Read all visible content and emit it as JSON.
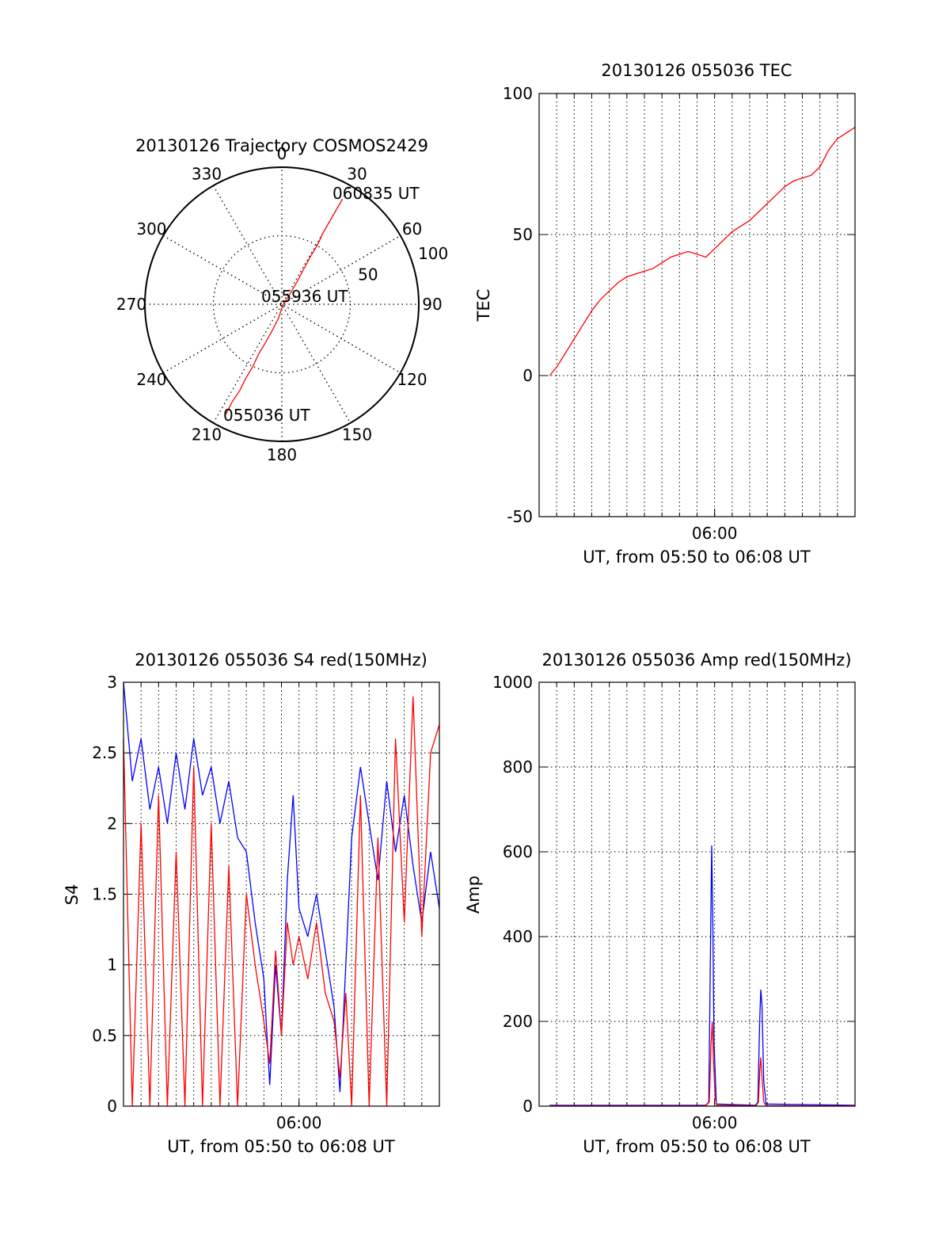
{
  "colors": {
    "red": "#ff0000",
    "blue": "#0000ff",
    "axes": "#000000",
    "grid": "#000000"
  },
  "chart_data": [
    {
      "type": "polar",
      "title": "20130126 Trajectory COSMOS2429",
      "angle_labels": [
        "0",
        "30",
        "60",
        "90",
        "120",
        "150",
        "180",
        "210",
        "240",
        "270",
        "300",
        "330"
      ],
      "radius_labels": [
        "50",
        "100"
      ],
      "rlim": [
        0,
        100
      ],
      "grid": true,
      "annotations": [
        {
          "text": "060835 UT"
        },
        {
          "text": "055936 UT"
        },
        {
          "text": "055036 UT"
        }
      ],
      "series": [
        {
          "color": "red",
          "points_az_zen": [
            [
              207,
              90
            ],
            [
              207,
              80
            ],
            [
              206,
              70
            ],
            [
              206,
              60
            ],
            [
              205,
              50
            ],
            [
              205,
              40
            ],
            [
              203,
              30
            ],
            [
              200,
              20
            ],
            [
              193,
              10
            ],
            [
              150,
              1
            ],
            [
              40,
              8
            ],
            [
              34,
              20
            ],
            [
              32,
              30
            ],
            [
              31,
              40
            ],
            [
              31,
              50
            ],
            [
              30,
              60
            ],
            [
              30,
              70
            ],
            [
              30,
              80
            ],
            [
              30,
              88
            ]
          ]
        }
      ]
    },
    {
      "type": "line",
      "title": "20130126 055036 TEC",
      "xlabel": "UT, from 05:50 to 06:08 UT",
      "ylabel": "TEC",
      "xlim": [
        "05:50:00",
        "06:08:00"
      ],
      "ylim": [
        -50,
        100
      ],
      "yticks": [
        "-50",
        "0",
        "50",
        "100"
      ],
      "xticks": [
        "06:00"
      ],
      "grid": true,
      "series": [
        {
          "color": "red",
          "points": [
            [
              "05:50:36",
              0
            ],
            [
              "05:51:00",
              3
            ],
            [
              "05:51:30",
              8
            ],
            [
              "05:52:00",
              13
            ],
            [
              "05:52:30",
              18
            ],
            [
              "05:53:00",
              23
            ],
            [
              "05:53:30",
              27
            ],
            [
              "05:54:00",
              30
            ],
            [
              "05:54:30",
              33
            ],
            [
              "05:55:00",
              35
            ],
            [
              "05:55:30",
              36
            ],
            [
              "05:56:00",
              37
            ],
            [
              "05:56:30",
              38
            ],
            [
              "05:57:00",
              40
            ],
            [
              "05:57:30",
              42
            ],
            [
              "05:58:00",
              43
            ],
            [
              "05:58:30",
              44
            ],
            [
              "05:59:00",
              43
            ],
            [
              "05:59:30",
              42
            ],
            [
              "06:00:00",
              45
            ],
            [
              "06:00:30",
              48
            ],
            [
              "06:01:00",
              51
            ],
            [
              "06:01:30",
              53
            ],
            [
              "06:02:00",
              55
            ],
            [
              "06:02:30",
              58
            ],
            [
              "06:03:00",
              61
            ],
            [
              "06:03:30",
              64
            ],
            [
              "06:04:00",
              67
            ],
            [
              "06:04:30",
              69
            ],
            [
              "06:05:00",
              70
            ],
            [
              "06:05:30",
              71
            ],
            [
              "06:06:00",
              74
            ],
            [
              "06:06:30",
              80
            ],
            [
              "06:07:00",
              84
            ],
            [
              "06:07:30",
              86
            ],
            [
              "06:08:00",
              88
            ]
          ]
        }
      ]
    },
    {
      "type": "line",
      "title": "20130126 055036 S4 red(150MHz)",
      "xlabel": "UT, from 05:50 to 06:08 UT",
      "ylabel": "S4",
      "xlim": [
        "05:50:00",
        "06:08:00"
      ],
      "ylim": [
        0,
        3
      ],
      "yticks": [
        "0",
        "0.5",
        "1",
        "1.5",
        "2",
        "2.5",
        "3"
      ],
      "xticks": [
        "06:00"
      ],
      "grid": true,
      "series": [
        {
          "color": "blue",
          "points": [
            [
              "05:50:00",
              3.0
            ],
            [
              "05:50:30",
              2.3
            ],
            [
              "05:51:00",
              2.6
            ],
            [
              "05:51:30",
              2.1
            ],
            [
              "05:52:00",
              2.4
            ],
            [
              "05:52:30",
              2.0
            ],
            [
              "05:53:00",
              2.5
            ],
            [
              "05:53:30",
              2.1
            ],
            [
              "05:54:00",
              2.6
            ],
            [
              "05:54:30",
              2.2
            ],
            [
              "05:55:00",
              2.4
            ],
            [
              "05:55:30",
              2.0
            ],
            [
              "05:56:00",
              2.3
            ],
            [
              "05:56:30",
              1.9
            ],
            [
              "05:57:00",
              1.8
            ],
            [
              "05:57:30",
              1.3
            ],
            [
              "05:58:00",
              0.9
            ],
            [
              "05:58:20",
              0.15
            ],
            [
              "05:58:40",
              1.0
            ],
            [
              "05:59:00",
              0.5
            ],
            [
              "05:59:20",
              1.6
            ],
            [
              "05:59:40",
              2.2
            ],
            [
              "06:00:00",
              1.4
            ],
            [
              "06:00:30",
              1.2
            ],
            [
              "06:01:00",
              1.5
            ],
            [
              "06:01:30",
              1.1
            ],
            [
              "06:02:00",
              0.7
            ],
            [
              "06:02:20",
              0.1
            ],
            [
              "06:02:40",
              1.0
            ],
            [
              "06:03:00",
              1.9
            ],
            [
              "06:03:30",
              2.4
            ],
            [
              "06:04:00",
              2.0
            ],
            [
              "06:04:30",
              1.6
            ],
            [
              "06:05:00",
              2.3
            ],
            [
              "06:05:30",
              1.8
            ],
            [
              "06:06:00",
              2.2
            ],
            [
              "06:06:30",
              1.7
            ],
            [
              "06:07:00",
              1.3
            ],
            [
              "06:07:30",
              1.8
            ],
            [
              "06:08:00",
              1.4
            ]
          ]
        },
        {
          "color": "red",
          "points": [
            [
              "05:50:00",
              2.6
            ],
            [
              "05:50:30",
              0.0
            ],
            [
              "05:51:00",
              2.0
            ],
            [
              "05:51:30",
              0.0
            ],
            [
              "05:52:00",
              2.2
            ],
            [
              "05:52:30",
              0.0
            ],
            [
              "05:53:00",
              1.8
            ],
            [
              "05:53:30",
              0.0
            ],
            [
              "05:54:00",
              2.4
            ],
            [
              "05:54:30",
              0.0
            ],
            [
              "05:55:00",
              2.0
            ],
            [
              "05:55:30",
              0.0
            ],
            [
              "05:56:00",
              1.7
            ],
            [
              "05:56:30",
              0.0
            ],
            [
              "05:57:00",
              1.5
            ],
            [
              "05:57:30",
              1.0
            ],
            [
              "05:58:00",
              0.6
            ],
            [
              "05:58:20",
              0.3
            ],
            [
              "05:58:40",
              1.1
            ],
            [
              "05:59:00",
              0.5
            ],
            [
              "05:59:20",
              1.3
            ],
            [
              "05:59:40",
              1.0
            ],
            [
              "06:00:00",
              1.2
            ],
            [
              "06:00:30",
              0.9
            ],
            [
              "06:01:00",
              1.3
            ],
            [
              "06:01:30",
              0.8
            ],
            [
              "06:02:00",
              0.6
            ],
            [
              "06:02:20",
              0.2
            ],
            [
              "06:02:40",
              0.8
            ],
            [
              "06:03:00",
              0.0
            ],
            [
              "06:03:30",
              2.2
            ],
            [
              "06:04:00",
              0.0
            ],
            [
              "06:04:30",
              1.9
            ],
            [
              "06:05:00",
              0.0
            ],
            [
              "06:05:30",
              2.6
            ],
            [
              "06:06:00",
              1.3
            ],
            [
              "06:06:30",
              2.9
            ],
            [
              "06:07:00",
              1.2
            ],
            [
              "06:07:30",
              2.5
            ],
            [
              "06:08:00",
              2.7
            ]
          ]
        }
      ]
    },
    {
      "type": "line",
      "title": "20130126 055036 Amp red(150MHz)",
      "xlabel": "UT, from 05:50 to 06:08 UT",
      "ylabel": "Amp",
      "xlim": [
        "05:50:00",
        "06:08:00"
      ],
      "ylim": [
        0,
        1000
      ],
      "yticks": [
        "0",
        "200",
        "400",
        "600",
        "800",
        "1000"
      ],
      "xticks": [
        "06:00"
      ],
      "grid": true,
      "series": [
        {
          "color": "blue",
          "points": [
            [
              "05:50:36",
              2
            ],
            [
              "05:59:30",
              2
            ],
            [
              "05:59:40",
              10
            ],
            [
              "05:59:46",
              380
            ],
            [
              "05:59:50",
              615
            ],
            [
              "05:59:54",
              420
            ],
            [
              "05:59:58",
              150
            ],
            [
              "06:00:06",
              5
            ],
            [
              "06:02:20",
              2
            ],
            [
              "06:02:28",
              10
            ],
            [
              "06:02:34",
              200
            ],
            [
              "06:02:38",
              275
            ],
            [
              "06:02:42",
              240
            ],
            [
              "06:02:48",
              60
            ],
            [
              "06:02:56",
              5
            ],
            [
              "06:08:00",
              2
            ]
          ]
        },
        {
          "color": "red",
          "points": [
            [
              "05:50:36",
              1
            ],
            [
              "05:59:30",
              1
            ],
            [
              "05:59:42",
              10
            ],
            [
              "05:59:48",
              150
            ],
            [
              "05:59:52",
              200
            ],
            [
              "05:59:56",
              110
            ],
            [
              "06:00:02",
              20
            ],
            [
              "06:00:08",
              2
            ],
            [
              "06:02:22",
              1
            ],
            [
              "06:02:30",
              10
            ],
            [
              "06:02:34",
              80
            ],
            [
              "06:02:38",
              115
            ],
            [
              "06:02:42",
              70
            ],
            [
              "06:02:48",
              10
            ],
            [
              "06:02:56",
              1
            ],
            [
              "06:08:00",
              1
            ]
          ]
        }
      ]
    }
  ]
}
